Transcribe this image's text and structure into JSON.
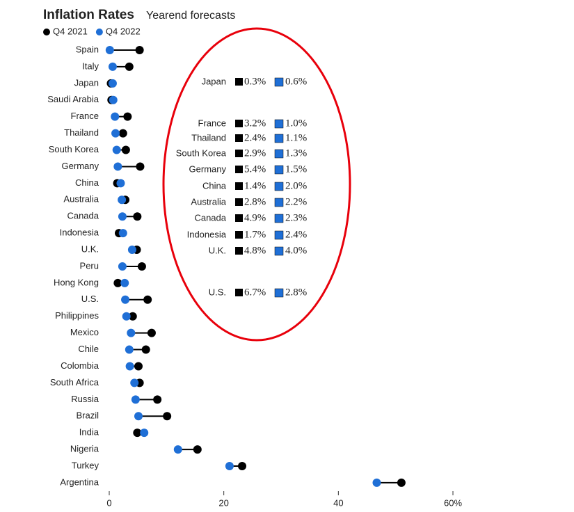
{
  "chart_data": {
    "type": "dumbbell",
    "title": "Inflation Rates",
    "subtitle": "Yearend forecasts",
    "categories": [
      "Spain",
      "Italy",
      "Japan",
      "Saudi Arabia",
      "France",
      "Thailand",
      "South Korea",
      "Germany",
      "China",
      "Australia",
      "Canada",
      "Indonesia",
      "U.K.",
      "Peru",
      "Hong Kong",
      "U.S.",
      "Philippines",
      "Mexico",
      "Chile",
      "Colombia",
      "South Africa",
      "Russia",
      "Brazil",
      "India",
      "Nigeria",
      "Turkey",
      "Argentina"
    ],
    "series": [
      {
        "name": "Q4 2021",
        "color": "#000000",
        "values": [
          5.3,
          3.5,
          0.3,
          0.4,
          3.2,
          2.4,
          2.9,
          5.4,
          1.4,
          2.8,
          4.9,
          1.7,
          4.8,
          5.7,
          1.5,
          6.7,
          4.1,
          7.4,
          6.4,
          5.1,
          5.3,
          8.4,
          10.1,
          4.9,
          15.4,
          23.2,
          51.0
        ]
      },
      {
        "name": "Q4 2022",
        "color": "#1f6fd6",
        "values": [
          0.1,
          0.6,
          0.6,
          0.7,
          1.0,
          1.1,
          1.3,
          1.5,
          2.0,
          2.2,
          2.3,
          2.4,
          4.0,
          2.3,
          2.7,
          2.8,
          3.0,
          3.8,
          3.5,
          3.6,
          4.4,
          4.6,
          5.1,
          6.1,
          12.0,
          21.0,
          46.7
        ]
      }
    ],
    "xlim": [
      0,
      60
    ],
    "xticks": [
      0,
      20,
      40,
      {
        "value": 60,
        "label": "60%"
      }
    ]
  },
  "annotation": {
    "rows": [
      {
        "label": "Japan",
        "q4_2021": "0.3%",
        "q4_2022": "0.6%"
      },
      {
        "label": "France",
        "q4_2021": "3.2%",
        "q4_2022": "1.0%"
      },
      {
        "label": "Thailand",
        "q4_2021": "2.4%",
        "q4_2022": "1.1%"
      },
      {
        "label": "South Korea",
        "q4_2021": "2.9%",
        "q4_2022": "1.3%"
      },
      {
        "label": "Germany",
        "q4_2021": "5.4%",
        "q4_2022": "1.5%"
      },
      {
        "label": "China",
        "q4_2021": "1.4%",
        "q4_2022": "2.0%"
      },
      {
        "label": "Australia",
        "q4_2021": "2.8%",
        "q4_2022": "2.2%"
      },
      {
        "label": "Canada",
        "q4_2021": "4.9%",
        "q4_2022": "2.3%"
      },
      {
        "label": "Indonesia",
        "q4_2021": "1.7%",
        "q4_2022": "2.4%"
      },
      {
        "label": "U.K.",
        "q4_2021": "4.8%",
        "q4_2022": "4.0%"
      },
      {
        "label": "U.S.",
        "q4_2021": "6.7%",
        "q4_2022": "2.8%"
      }
    ]
  }
}
